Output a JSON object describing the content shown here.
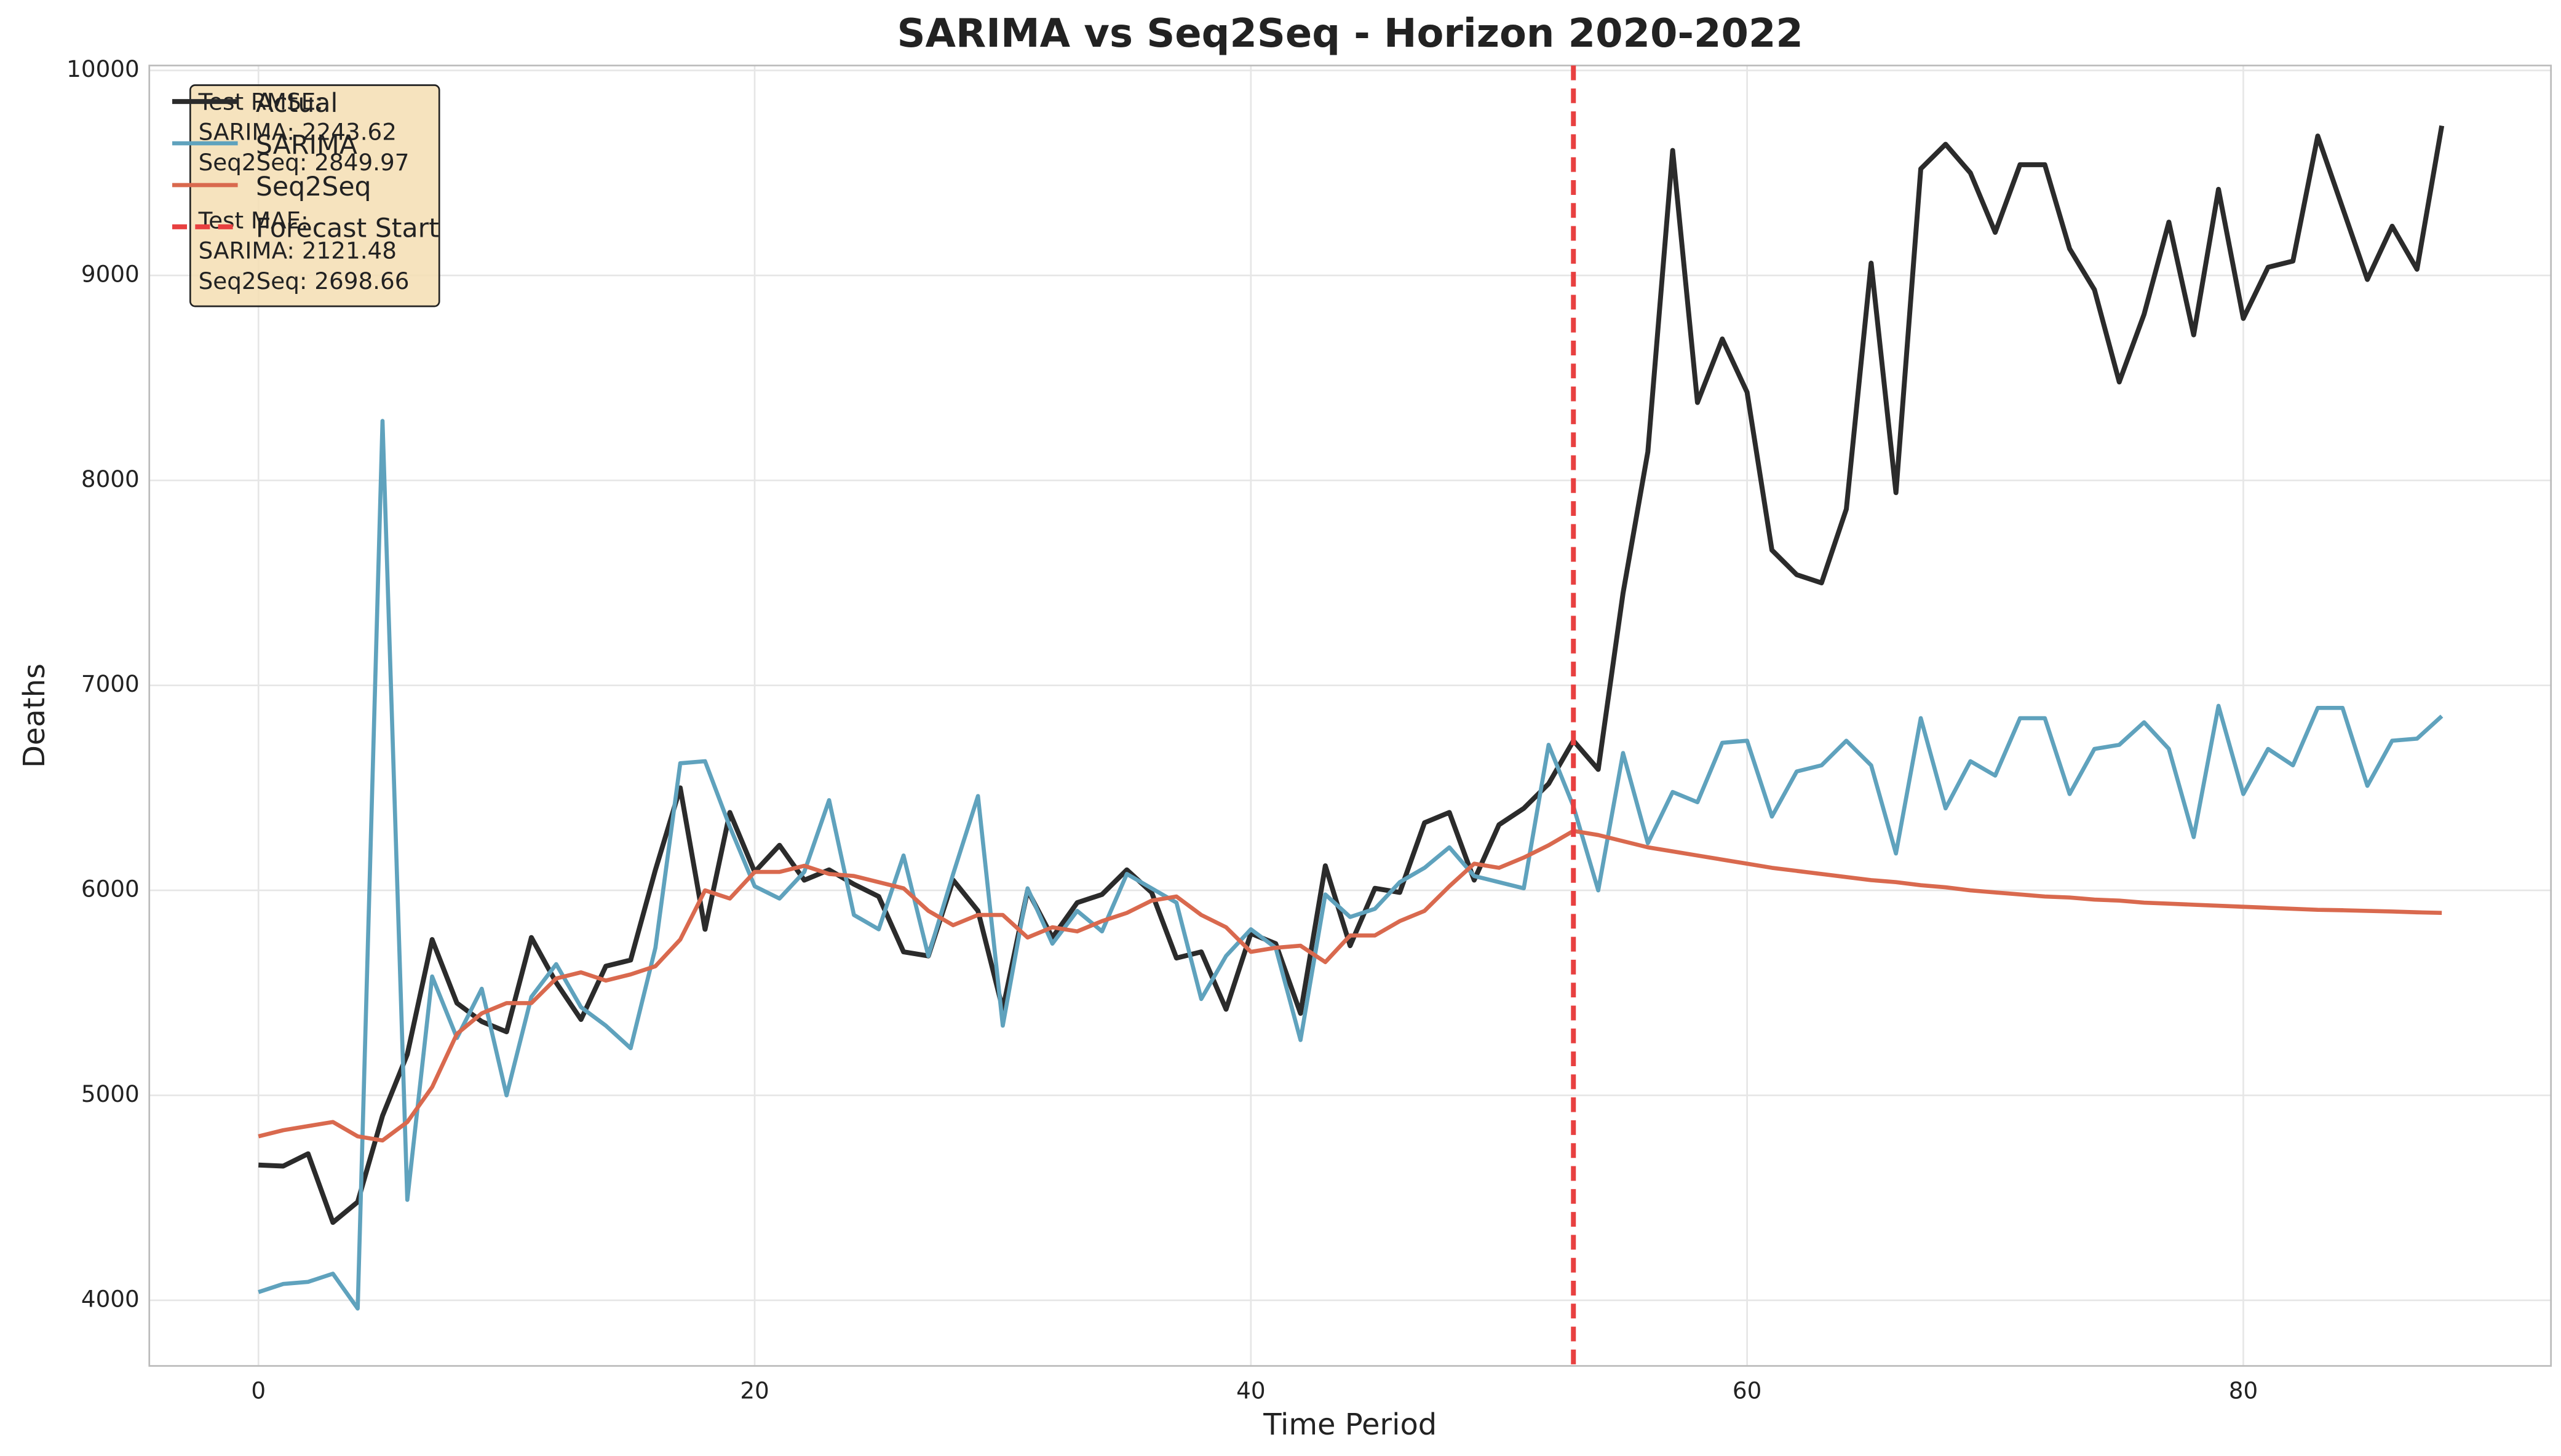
{
  "chart_data": {
    "type": "line",
    "title": "SARIMA vs Seq2Seq - Horizon 2020-2022",
    "x_label": "Time Period",
    "y_label": "Deaths",
    "x": [
      0,
      1,
      2,
      3,
      4,
      5,
      6,
      7,
      8,
      9,
      10,
      11,
      12,
      13,
      14,
      15,
      16,
      17,
      18,
      19,
      20,
      21,
      22,
      23,
      24,
      25,
      26,
      27,
      28,
      29,
      30,
      31,
      32,
      33,
      34,
      35,
      36,
      37,
      38,
      39,
      40,
      41,
      42,
      43,
      44,
      45,
      46,
      47,
      48,
      49,
      50,
      51,
      52,
      53,
      54,
      55,
      56,
      57,
      58,
      59,
      60,
      61,
      62,
      63,
      64,
      65,
      66,
      67,
      68,
      69,
      70,
      71,
      72,
      73,
      74,
      75,
      76,
      77,
      78,
      79,
      80,
      81,
      82,
      83,
      84,
      85,
      86,
      87,
      88
    ],
    "series": [
      {
        "name": "Actual",
        "color": "#2b2b2b",
        "width": 3,
        "values": [
          4660,
          4655,
          4715,
          4380,
          4480,
          4900,
          5200,
          5760,
          5450,
          5360,
          5310,
          5770,
          5550,
          5370,
          5630,
          5660,
          6100,
          6500,
          5810,
          6380,
          6090,
          6220,
          6050,
          6100,
          6030,
          5970,
          5700,
          5680,
          6050,
          5900,
          5420,
          6000,
          5770,
          5940,
          5980,
          6100,
          5990,
          5670,
          5700,
          5420,
          5790,
          5740,
          5400,
          6120,
          5730,
          6010,
          5990,
          6330,
          6380,
          6050,
          6320,
          6400,
          6520,
          6730,
          6590,
          7450,
          8140,
          9610,
          8380,
          8690,
          8430,
          7660,
          7540,
          7500,
          7860,
          9060,
          7940,
          9520,
          9640,
          9500,
          9210,
          9540,
          9540,
          9130,
          8930,
          8480,
          8810,
          9260,
          8710,
          9420,
          8790,
          9040,
          9070,
          9680,
          9330,
          8980,
          9240,
          9030,
          9730
        ]
      },
      {
        "name": "SARIMA",
        "color": "#5fa2bd",
        "width": 2.5,
        "values": [
          4040,
          4080,
          4090,
          4130,
          3960,
          8290,
          4490,
          5580,
          5280,
          5520,
          5000,
          5480,
          5640,
          5430,
          5340,
          5230,
          5720,
          6620,
          6630,
          6310,
          6020,
          5960,
          6090,
          6440,
          5880,
          5810,
          6170,
          5680,
          6080,
          6460,
          5340,
          6010,
          5740,
          5900,
          5800,
          6080,
          6010,
          5940,
          5470,
          5680,
          5810,
          5720,
          5270,
          5980,
          5870,
          5910,
          6040,
          6110,
          6210,
          6070,
          6040,
          6010,
          6710,
          6410,
          6000,
          6670,
          6230,
          6480,
          6430,
          6720,
          6730,
          6360,
          6580,
          6610,
          6730,
          6610,
          6180,
          6840,
          6400,
          6630,
          6560,
          6840,
          6840,
          6470,
          6690,
          6710,
          6820,
          6690,
          6260,
          6900,
          6470,
          6690,
          6610,
          6890,
          6890,
          6510,
          6730,
          6740,
          6850
        ]
      },
      {
        "name": "Seq2Seq",
        "color": "#d9694e",
        "width": 2.5,
        "values": [
          4800,
          4830,
          4850,
          4870,
          4800,
          4780,
          4870,
          5040,
          5300,
          5400,
          5450,
          5450,
          5570,
          5600,
          5560,
          5590,
          5630,
          5760,
          6000,
          5960,
          6090,
          6090,
          6120,
          6080,
          6070,
          6040,
          6010,
          5900,
          5830,
          5880,
          5880,
          5770,
          5820,
          5800,
          5850,
          5890,
          5950,
          5970,
          5880,
          5820,
          5700,
          5720,
          5730,
          5650,
          5780,
          5780,
          5850,
          5900,
          6020,
          6130,
          6110,
          6160,
          6220,
          6290,
          6270,
          6240,
          6210,
          6190,
          6170,
          6150,
          6130,
          6110,
          6095,
          6080,
          6065,
          6050,
          6040,
          6025,
          6015,
          6000,
          5990,
          5980,
          5970,
          5965,
          5955,
          5950,
          5940,
          5935,
          5930,
          5925,
          5920,
          5915,
          5910,
          5905,
          5903,
          5900,
          5897,
          5893,
          5890
        ]
      }
    ],
    "vline": {
      "name": "Forecast Start",
      "x": 53,
      "color": "#e84040"
    },
    "annotation": [
      {
        "title": "Test RMSE:",
        "lines": [
          "SARIMA: 2243.62",
          "Seq2Seq: 2849.97"
        ]
      },
      {
        "title": "Test MAE:",
        "lines": [
          "SARIMA: 2121.48",
          "Seq2Seq: 2698.66"
        ]
      }
    ],
    "xlim": [
      -4.4,
      92.4
    ],
    "ylim": [
      3680,
      10024
    ],
    "xticks": [
      0,
      20,
      40,
      60,
      80
    ],
    "yticks": [
      4000,
      5000,
      6000,
      7000,
      8000,
      9000,
      10000
    ],
    "grid": true,
    "legend": "upper left"
  }
}
